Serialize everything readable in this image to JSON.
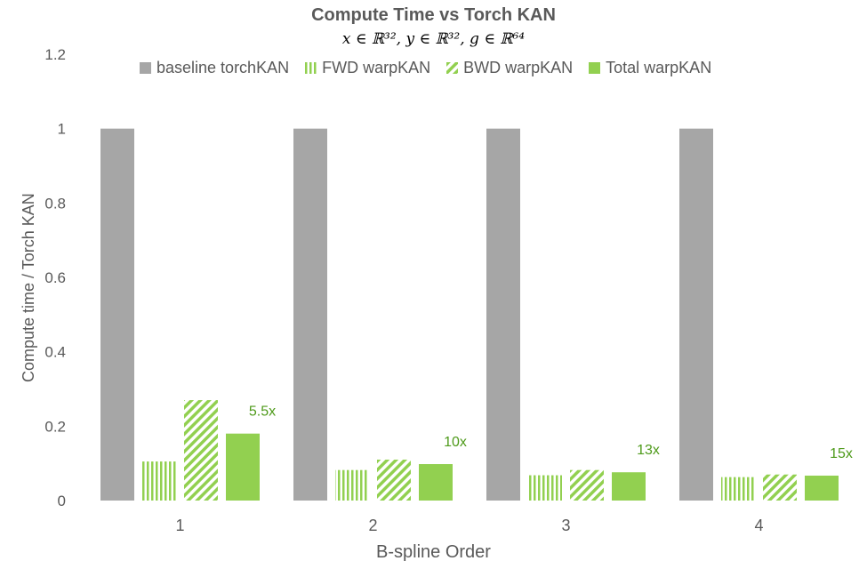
{
  "chart_data": {
    "type": "bar",
    "title": "Compute Time vs Torch KAN",
    "subtitle": "x ∈ ℝ³², y ∈ ℝ³², g ∈ ℝ⁶⁴",
    "xlabel": "B-spline Order",
    "ylabel": "Compute time / Torch KAN",
    "categories": [
      "1",
      "2",
      "3",
      "4"
    ],
    "ylim": [
      0,
      1.2
    ],
    "yticks": [
      "0",
      "0.2",
      "0.4",
      "0.6",
      "0.8",
      "1",
      "1.2"
    ],
    "grid": false,
    "legend_position": "top",
    "series": [
      {
        "name": "baseline torchKAN",
        "style": "solid",
        "color": "#a6a6a6",
        "values": [
          1,
          1,
          1,
          1
        ]
      },
      {
        "name": "FWD warpKAN",
        "style": "vertical-stripes",
        "color": "#92d050",
        "values": [
          0.105,
          0.082,
          0.068,
          0.063
        ]
      },
      {
        "name": "BWD warpKAN",
        "style": "diagonal-stripes",
        "color": "#92d050",
        "values": [
          0.27,
          0.11,
          0.082,
          0.07
        ]
      },
      {
        "name": "Total warpKAN",
        "style": "solid",
        "color": "#92d050",
        "values": [
          0.18,
          0.098,
          0.076,
          0.067
        ]
      }
    ],
    "annotations": [
      "5.5x",
      "10x",
      "13x",
      "15x"
    ],
    "annotation_color": "#4e9a1a"
  }
}
